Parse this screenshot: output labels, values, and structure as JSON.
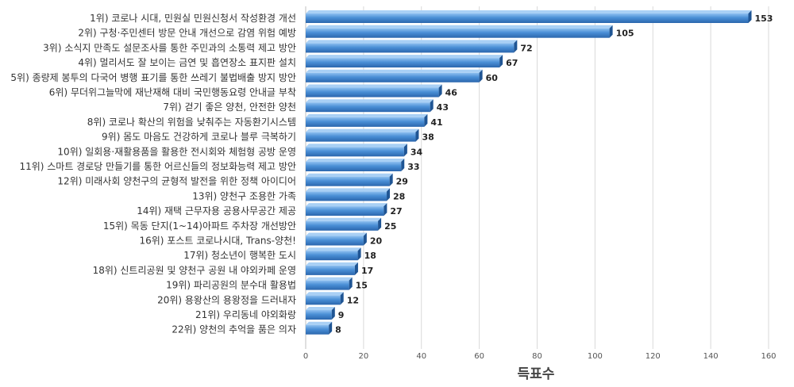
{
  "chart_data": {
    "type": "bar",
    "orientation": "horizontal",
    "xlabel": "득표수",
    "xlim": [
      0,
      160
    ],
    "xticks": [
      0,
      20,
      40,
      60,
      80,
      100,
      120,
      140,
      160
    ],
    "grid": true,
    "bar_color": "#4a8fd6",
    "categories": [
      "1위) 코로나 시대, 민원실 민원신청서 작성환경 개선",
      "2위) 구청·주민센터 방문 안내 개선으로 감염 위험 예방",
      "3위) 소식지 만족도 설문조사를 통한 주민과의 소통력 제고 방안",
      "4위) 멀리서도 잘 보이는 금연 및 흡연장소 표지판 설치",
      "5위) 종량제 봉투의 다국어 병행 표기를 통한 쓰레기 불법배출 방지 방안",
      "6위) 무더위그늘막에 재난재해 대비 국민행동요령 안내글 부착",
      "7위) 걷기 좋은 양천, 안전한 양천",
      "8위) 코로나 확산의 위험을 낮춰주는 자동환기시스템",
      "9위) 몸도 마음도 건강하게 코로나 블루 극복하기",
      "10위) 일회용·재활용품을 활용한 전시회와 체험형 공방 운영",
      "11위) 스마트 경로당 만들기를 통한 어르신들의 정보화능력 제고 방안",
      "12위) 미래사회 양천구의 균형적 발전을 위한 정책 아이디어",
      "13위) 양천구 조용한 가족",
      "14위) 재택 근무자용 공용사무공간 제공",
      "15위) 목동 단지(1~14)아파트 주차장 개선방안",
      "16위) 포스트 코로나시대, Trans-양천!",
      "17위) 청소년이 행복한 도시",
      "18위) 신트리공원 및 양천구 공원 내 야외카페 운영",
      "19위) 파리공원의 분수대 활용법",
      "20위) 용왕산의 용왕정을 드러내자",
      "21위) 우리동네 야외화랑",
      "22위) 양천의 추억을 품은 의자"
    ],
    "values": [
      153,
      105,
      72,
      67,
      60,
      46,
      43,
      41,
      38,
      34,
      33,
      29,
      28,
      27,
      25,
      20,
      18,
      17,
      15,
      12,
      9,
      8
    ]
  }
}
